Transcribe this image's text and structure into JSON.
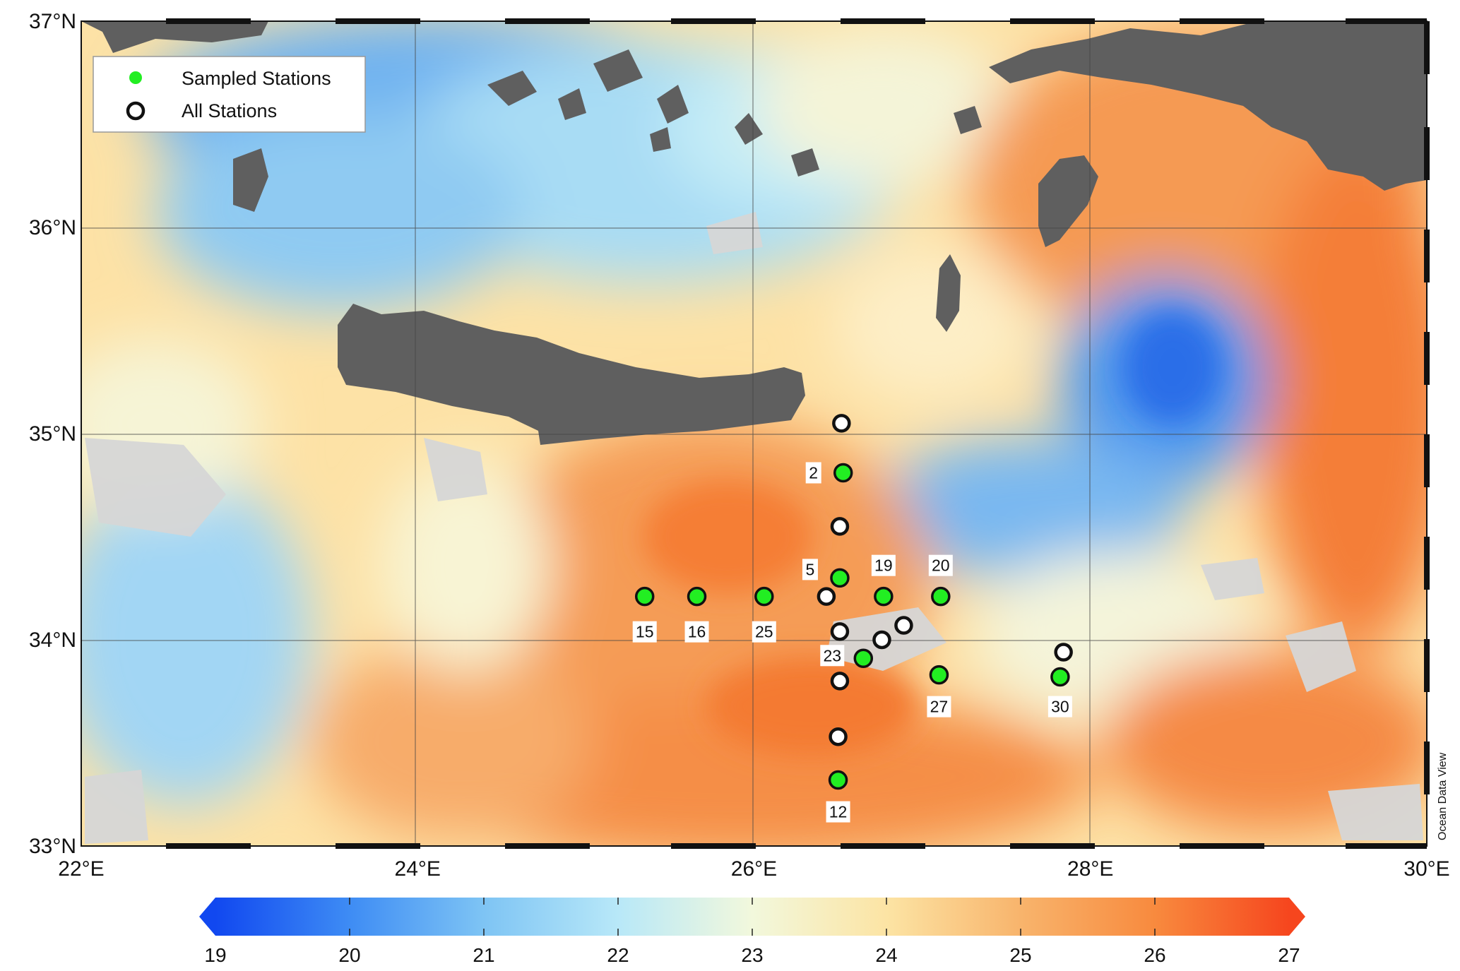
{
  "map": {
    "lat_range": [
      33,
      37
    ],
    "lon_range": [
      22,
      30
    ],
    "credit": "Ocean Data View",
    "lat_ticks": [
      {
        "value": 37,
        "label": "37°N"
      },
      {
        "value": 36,
        "label": "36°N"
      },
      {
        "value": 35,
        "label": "35°N"
      },
      {
        "value": 34,
        "label": "34°N"
      },
      {
        "value": 33,
        "label": "33°N"
      }
    ],
    "lon_ticks": [
      {
        "value": 22,
        "label": "22°E"
      },
      {
        "value": 24,
        "label": "24°E"
      },
      {
        "value": 26,
        "label": "26°E"
      },
      {
        "value": 28,
        "label": "28°E"
      },
      {
        "value": 30,
        "label": "30°E"
      }
    ]
  },
  "legend": {
    "sampled": "Sampled Stations",
    "all": "All Stations"
  },
  "colors": {
    "sampled_fill": "#22ee22",
    "station_stroke": "#111111",
    "land": "#5f5f5f",
    "no_data": "#d8d8d8"
  },
  "colorbar": {
    "min": 19,
    "max": 27,
    "ticks": [
      "19",
      "20",
      "21",
      "22",
      "23",
      "24",
      "25",
      "26",
      "27"
    ]
  },
  "stations": [
    {
      "lon": 26.52,
      "lat": 35.05,
      "sampled": false
    },
    {
      "lon": 26.53,
      "lat": 34.81,
      "sampled": true,
      "label": "2"
    },
    {
      "lon": 26.51,
      "lat": 34.55,
      "sampled": false
    },
    {
      "lon": 26.51,
      "lat": 34.3,
      "sampled": true,
      "label": "5"
    },
    {
      "lon": 26.43,
      "lat": 34.21,
      "sampled": false
    },
    {
      "lon": 26.51,
      "lat": 34.04,
      "sampled": false
    },
    {
      "lon": 26.65,
      "lat": 33.91,
      "sampled": true,
      "label": "23"
    },
    {
      "lon": 26.76,
      "lat": 34.0,
      "sampled": false
    },
    {
      "lon": 26.89,
      "lat": 34.07,
      "sampled": false
    },
    {
      "lon": 26.77,
      "lat": 34.21,
      "sampled": true,
      "label": "19"
    },
    {
      "lon": 27.11,
      "lat": 34.21,
      "sampled": true,
      "label": "20"
    },
    {
      "lon": 25.35,
      "lat": 34.21,
      "sampled": true,
      "label": "15"
    },
    {
      "lon": 25.66,
      "lat": 34.21,
      "sampled": true,
      "label": "16"
    },
    {
      "lon": 26.06,
      "lat": 34.21,
      "sampled": true,
      "label": "25"
    },
    {
      "lon": 26.51,
      "lat": 33.8,
      "sampled": false
    },
    {
      "lon": 26.5,
      "lat": 33.53,
      "sampled": false
    },
    {
      "lon": 26.5,
      "lat": 33.32,
      "sampled": true,
      "label": "12"
    },
    {
      "lon": 27.1,
      "lat": 33.83,
      "sampled": true,
      "label": "27"
    },
    {
      "lon": 27.84,
      "lat": 33.94,
      "sampled": false
    },
    {
      "lon": 27.82,
      "lat": 33.82,
      "sampled": true,
      "label": "30"
    }
  ]
}
